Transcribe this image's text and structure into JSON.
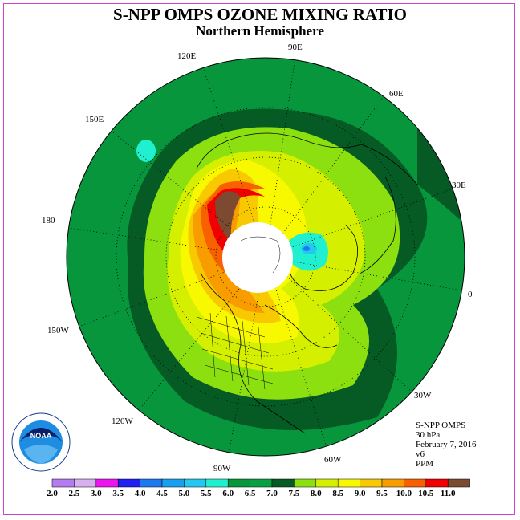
{
  "title": "S-NPP OMPS OZONE MIXING RATIO",
  "subtitle": "Northern Hemisphere",
  "longitude_labels": [
    "90E",
    "120E",
    "60E",
    "150E",
    "30E",
    "180",
    "0",
    "150W",
    "30W",
    "120W",
    "60W",
    "90W"
  ],
  "info": {
    "instrument": "S-NPP OMPS",
    "level": "30 hPa",
    "date": "February 7, 2016",
    "version": "v6",
    "units": "PPM"
  },
  "colorbar": {
    "colors": [
      "#b47cf0",
      "#d8b0f0",
      "#ee14ee",
      "#2020f0",
      "#1e78f0",
      "#18a0f0",
      "#22c8f0",
      "#20f0d0",
      "#08963c",
      "#08a040",
      "#065a24",
      "#8ce010",
      "#d4f000",
      "#f8f800",
      "#f8c800",
      "#f89c00",
      "#f86000",
      "#f00000",
      "#7c4a30"
    ],
    "labels": [
      "2.0",
      "2.5",
      "3.0",
      "3.5",
      "4.0",
      "4.5",
      "5.0",
      "5.5",
      "6.0",
      "6.5",
      "7.0",
      "7.5",
      "8.0",
      "8.5",
      "9.0",
      "9.5",
      "10.0",
      "10.5",
      "11.0"
    ]
  },
  "logo": {
    "name": "NOAA",
    "ring_text": "NATIONAL OCEANIC AND ATMOSPHERIC ADMINISTRATION · U.S. DEPARTMENT OF COMMERCE"
  }
}
